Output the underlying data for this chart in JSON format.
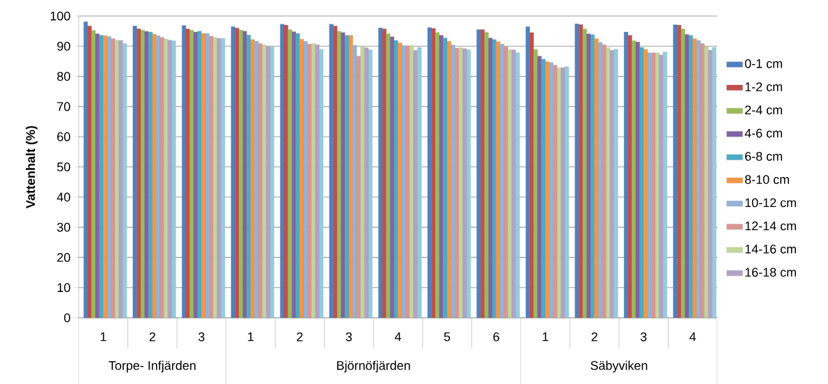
{
  "chart_data": {
    "type": "bar",
    "ylabel": "Vattenhalt (%)",
    "categories": [
      "1",
      "2",
      "3",
      "1",
      "2",
      "3",
      "4",
      "5",
      "6",
      "1",
      "2",
      "3",
      "4"
    ],
    "annotations": [
      "Torpe- Infjärden",
      "Björnöfjärden",
      "Säbyviken"
    ],
    "ylim": [
      0,
      100
    ],
    "yticks": [
      0,
      10,
      20,
      30,
      40,
      50,
      60,
      70,
      80,
      90,
      100
    ],
    "grid": "y",
    "legend": "right",
    "series": [
      {
        "name": "0-1 cm",
        "color": "#4f81bd",
        "values": [
          98.1,
          96.7,
          96.9,
          96.5,
          97.3,
          97.3,
          96.1,
          96.2,
          95.5,
          96.5,
          97.4,
          94.7,
          97.1
        ]
      },
      {
        "name": "1-2 cm",
        "color": "#c0504d",
        "values": [
          96.7,
          95.8,
          95.7,
          96.0,
          97.0,
          96.7,
          95.7,
          95.9,
          95.5,
          94.5,
          97.2,
          93.6,
          97.0
        ]
      },
      {
        "name": "2-4 cm",
        "color": "#9bbb59",
        "values": [
          95.2,
          95.3,
          95.3,
          95.3,
          95.5,
          94.9,
          94.1,
          94.5,
          94.6,
          88.9,
          95.7,
          91.8,
          95.7
        ]
      },
      {
        "name": "4-6 cm",
        "color": "#8064a2",
        "values": [
          94.1,
          94.9,
          94.7,
          95.0,
          94.8,
          94.5,
          93.1,
          93.6,
          92.7,
          86.7,
          94.1,
          91.4,
          93.9
        ]
      },
      {
        "name": "6-8 cm",
        "color": "#4bacc6",
        "values": [
          93.6,
          94.7,
          95.0,
          93.7,
          94.2,
          93.6,
          91.9,
          92.7,
          92.2,
          85.7,
          93.8,
          89.6,
          93.6
        ]
      },
      {
        "name": "8-10 cm",
        "color": "#f79646",
        "values": [
          93.5,
          94.0,
          94.2,
          92.2,
          92.3,
          93.6,
          91.1,
          91.6,
          91.5,
          84.9,
          92.5,
          89.0,
          92.5
        ]
      },
      {
        "name": "10-12 cm",
        "color": "#95b3d7",
        "values": [
          93.2,
          93.5,
          94.2,
          91.7,
          91.6,
          90.3,
          90.2,
          90.4,
          90.7,
          84.6,
          91.3,
          87.8,
          91.9
        ]
      },
      {
        "name": "12-14 cm",
        "color": "#d99694",
        "values": [
          92.5,
          92.9,
          93.3,
          90.9,
          90.7,
          86.7,
          90.1,
          89.4,
          89.8,
          83.7,
          90.5,
          87.8,
          90.9
        ]
      },
      {
        "name": "14-16 cm",
        "color": "#c3d69b",
        "values": [
          92.0,
          92.4,
          92.9,
          90.4,
          90.9,
          89.8,
          90.2,
          89.5,
          88.8,
          82.8,
          89.5,
          87.8,
          89.9
        ]
      },
      {
        "name": "16-18 cm",
        "color": "#b3a2c7",
        "values": [
          91.9,
          92.0,
          92.6,
          89.9,
          90.5,
          89.5,
          88.6,
          89.2,
          88.8,
          82.9,
          88.6,
          87.1,
          88.7
        ]
      },
      {
        "color": "#93cddd",
        "values": [
          90.9,
          91.8,
          92.6,
          89.8,
          89.0,
          88.8,
          89.6,
          88.8,
          87.8,
          83.2,
          89.0,
          88.1,
          89.6
        ]
      }
    ]
  }
}
